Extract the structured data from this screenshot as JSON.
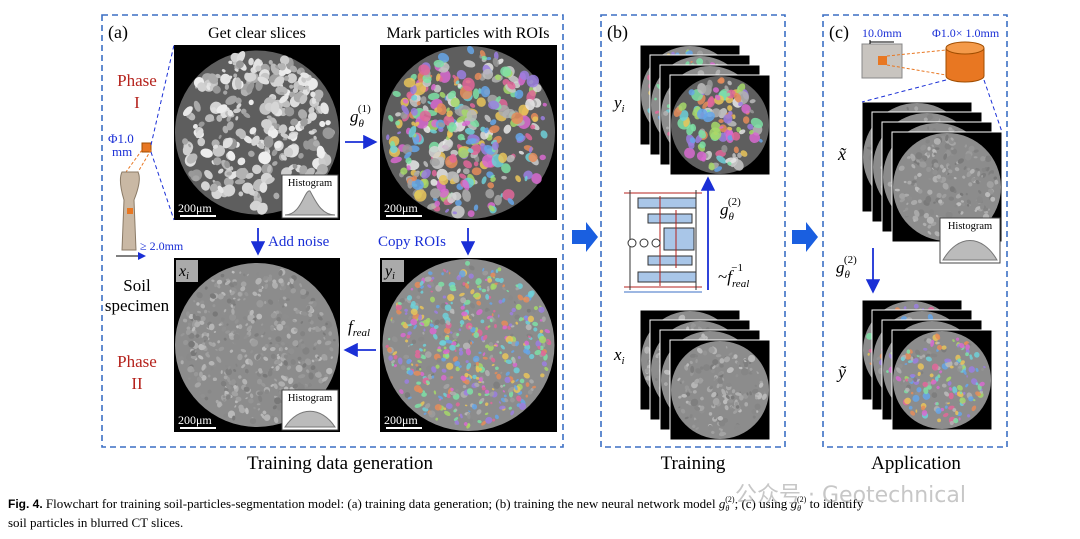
{
  "panel_a": {
    "label": "(a)",
    "title_left": "Get clear slices",
    "title_right": "Mark particles with ROIs",
    "phase_1": [
      "Phase",
      "I"
    ],
    "phase_2": [
      "Phase",
      "II"
    ],
    "core_size": [
      "Φ1.0",
      "mm"
    ],
    "specimen_width": "≥ 2.0mm",
    "specimen": [
      "Soil",
      "specimen"
    ],
    "histogram": "Histogram",
    "scale_bar": "200μm",
    "map_1": {
      "base": "g",
      "sub": "θ",
      "sup": "(1)"
    },
    "add_noise": "Add noise",
    "copy_rois": "Copy ROIs",
    "map_real": {
      "base": "f",
      "sub": "real"
    },
    "x_label": {
      "base": "x",
      "sub": "i"
    },
    "y_label": {
      "base": "y",
      "sub": "i"
    },
    "caption": "Training data generation"
  },
  "panel_b": {
    "label": "(b)",
    "y_label": {
      "base": "y",
      "sub": "i"
    },
    "x_label": {
      "base": "x",
      "sub": "i"
    },
    "map_2": {
      "base": "g",
      "sub": "θ",
      "sup": "(2)"
    },
    "inverse": {
      "prefix": "~",
      "base": "f",
      "sub": "real",
      "sup": "−1"
    },
    "caption": "Training"
  },
  "panel_c": {
    "label": "(c)",
    "photo_size": "10.0mm",
    "core_size": "Φ1.0× 1.0mm",
    "x_label": "x̃",
    "y_label": "ỹ",
    "histogram": "Histogram",
    "map_2": {
      "base": "g",
      "sub": "θ",
      "sup": "(2)"
    },
    "caption": "Application"
  },
  "figure_caption": {
    "label": "Fig. 4.",
    "text_1": " Flowchart for training soil-particles-segmentation model: (a) training data generation; (b) training the new neural network model ",
    "math_1": {
      "base": "g",
      "sub": "θ",
      "sup": "(2)"
    },
    "text_2": "; (c) using ",
    "math_2": {
      "base": "g",
      "sub": "θ",
      "sup": "(2)"
    },
    "text_3": " to identify",
    "text_4": "soil particles in blurred CT slices."
  },
  "watermark": "公众号 · Geotechnical"
}
